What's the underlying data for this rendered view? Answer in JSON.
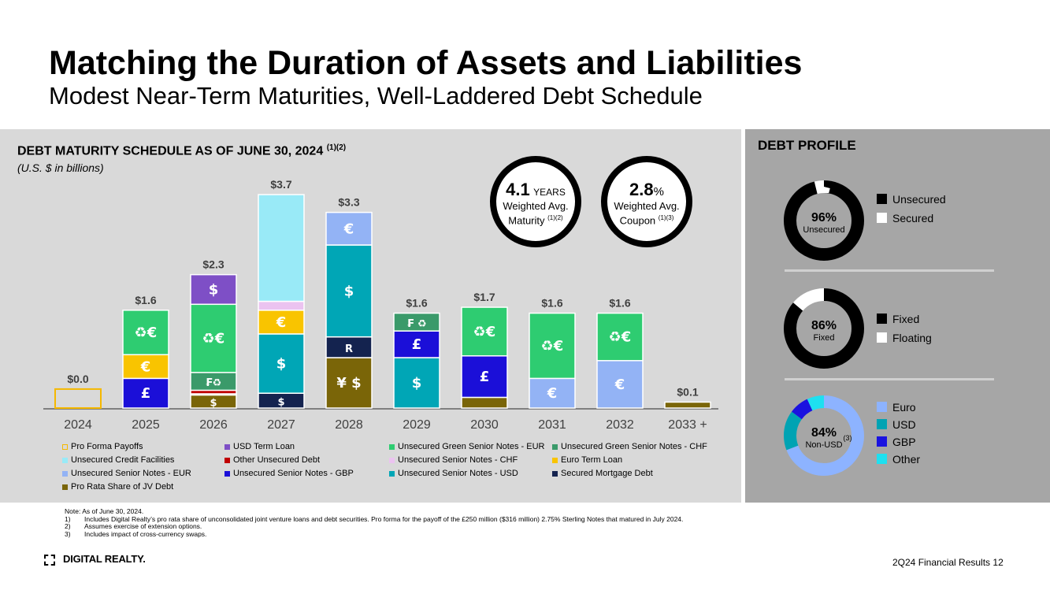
{
  "header": {
    "title": "Matching the Duration of Assets and Liabilities",
    "subtitle": "Modest Near-Term Maturities, Well-Laddered Debt Schedule"
  },
  "chart_panel": {
    "heading": "DEBT MATURITY SCHEDULE AS OF JUNE 30, 2024",
    "heading_note": "(1)(2)",
    "units": "(U.S. $ in billions)"
  },
  "kpis": {
    "maturity": {
      "value": "4.1",
      "unit": "YEARS",
      "label": "Weighted Avg. Maturity",
      "note": "(1)(2)"
    },
    "coupon": {
      "value": "2.8",
      "unit": "%",
      "label": "Weighted Avg. Coupon",
      "note": "(1)(3)"
    }
  },
  "colors": {
    "pro_forma": "#f5b800",
    "usd_term_loan": "#7e4fc6",
    "green_eur": "#2ecc71",
    "green_chf": "#3a9a6a",
    "credit_facilities": "#99eaf7",
    "other_unsecured": "#c00000",
    "senior_chf": "#ebc3f0",
    "euro_term_loan": "#f9c400",
    "senior_eur": "#93b3f5",
    "senior_gbp": "#1b0fd8",
    "senior_usd": "#00a6b6",
    "mortgage": "#14234f",
    "jv": "#7a6508"
  },
  "chart_data": {
    "type": "bar",
    "stacked": true,
    "categories": [
      "2024",
      "2025",
      "2026",
      "2027",
      "2028",
      "2029",
      "2030",
      "2031",
      "2032",
      "2033 +"
    ],
    "totals": [
      "$0.0",
      "$1.6",
      "$2.3",
      "$3.7",
      "$3.3",
      "$1.6",
      "$1.7",
      "$1.6",
      "$1.6",
      "$0.1"
    ],
    "series": [
      {
        "name": "Pro Forma Payoffs",
        "color_key": "pro_forma",
        "outline": true,
        "symbol": "",
        "values": [
          0.32,
          0,
          0,
          0,
          0,
          0,
          0,
          0,
          0,
          0
        ]
      },
      {
        "name": "USD Term Loan",
        "color_key": "usd_term_loan",
        "symbol": "$",
        "values": [
          0,
          0,
          0.5,
          0,
          0,
          0,
          0,
          0,
          0,
          0
        ]
      },
      {
        "name": "Unsecured Green Senior Notes - EUR",
        "color_key": "green_eur",
        "symbol": "♻€",
        "values": [
          0,
          0.75,
          1.15,
          0,
          0,
          0,
          0.82,
          1.1,
          0.8,
          0
        ]
      },
      {
        "name": "Unsecured Green Senior Notes - CHF",
        "color_key": "green_chf",
        "symbol": "₣♻",
        "values": [
          0,
          0,
          0.3,
          0,
          0,
          0.3,
          0,
          0,
          0,
          0
        ]
      },
      {
        "name": "Unsecured Credit Facilities",
        "color_key": "credit_facilities",
        "symbol": "",
        "values": [
          0,
          0,
          0,
          1.8,
          0,
          0,
          0,
          0,
          0,
          0
        ]
      },
      {
        "name": "Other Unsecured Debt",
        "color_key": "other_unsecured",
        "symbol": "",
        "values": [
          0,
          0,
          0.06,
          0,
          0,
          0,
          0,
          0,
          0,
          0
        ]
      },
      {
        "name": "Unsecured Senior Notes - CHF",
        "color_key": "senior_chf",
        "symbol": "₣",
        "values": [
          0,
          0,
          0,
          0.15,
          0,
          0,
          0,
          0,
          0,
          0
        ]
      },
      {
        "name": "Euro Term Loan",
        "color_key": "euro_term_loan",
        "symbol": "€",
        "values": [
          0,
          0.4,
          0,
          0.4,
          0,
          0,
          0,
          0,
          0,
          0
        ]
      },
      {
        "name": "Unsecured Senior Notes - EUR",
        "color_key": "senior_eur",
        "symbol": "€",
        "values": [
          0,
          0,
          0,
          0,
          0.55,
          0,
          0,
          0.5,
          0.8,
          0
        ]
      },
      {
        "name": "Unsecured Senior Notes - GBP",
        "color_key": "senior_gbp",
        "symbol": "£",
        "values": [
          0,
          0.5,
          0,
          0,
          0,
          0.45,
          0.7,
          0,
          0,
          0
        ]
      },
      {
        "name": "Unsecured Senior Notes - USD",
        "color_key": "senior_usd",
        "symbol": "$",
        "values": [
          0,
          0,
          0,
          1.0,
          1.55,
          0.85,
          0,
          0,
          0,
          0
        ]
      },
      {
        "name": "Secured Mortgage Debt",
        "color_key": "mortgage",
        "symbol": "R",
        "values": [
          0,
          0,
          0.02,
          0.25,
          0.35,
          0,
          0,
          0,
          0,
          0
        ]
      },
      {
        "name": "Pro Rata Share of JV Debt",
        "color_key": "jv",
        "symbol": "¥ $",
        "values": [
          0,
          0,
          0.22,
          0,
          0.85,
          0,
          0.18,
          0,
          0,
          0.1
        ]
      }
    ],
    "stack_order": [
      [
        "Pro Forma Payoffs"
      ],
      [
        "Unsecured Senior Notes - GBP",
        "Euro Term Loan",
        "Unsecured Green Senior Notes - EUR"
      ],
      [
        "Pro Rata Share of JV Debt",
        "Secured Mortgage Debt",
        "Other Unsecured Debt",
        "Unsecured Green Senior Notes - CHF",
        "Unsecured Green Senior Notes - EUR",
        "USD Term Loan"
      ],
      [
        "Secured Mortgage Debt",
        "Unsecured Senior Notes - USD",
        "Euro Term Loan",
        "Unsecured Senior Notes - CHF",
        "Unsecured Credit Facilities"
      ],
      [
        "Pro Rata Share of JV Debt",
        "Secured Mortgage Debt",
        "Unsecured Senior Notes - USD",
        "Unsecured Senior Notes - EUR"
      ],
      [
        "Unsecured Senior Notes - USD",
        "Unsecured Senior Notes - GBP",
        "Unsecured Green Senior Notes - CHF"
      ],
      [
        "Pro Rata Share of JV Debt",
        "Unsecured Senior Notes - GBP",
        "Unsecured Green Senior Notes - EUR"
      ],
      [
        "Unsecured Senior Notes - EUR",
        "Unsecured Green Senior Notes - EUR"
      ],
      [
        "Unsecured Senior Notes - EUR",
        "Unsecured Green Senior Notes - EUR"
      ],
      [
        "Pro Rata Share of JV Debt"
      ]
    ],
    "segment_symbols": [
      [
        ""
      ],
      [
        "£",
        "€",
        "♻€"
      ],
      [
        "$",
        "",
        "",
        "₣♻",
        "♻€",
        "$"
      ],
      [
        "$",
        "$",
        "€",
        "₣",
        ""
      ],
      [
        "¥ $",
        "R",
        "$",
        "€"
      ],
      [
        "$",
        "£",
        "₣ ♻"
      ],
      [
        "¥",
        "£",
        "♻€"
      ],
      [
        "€",
        "♻€"
      ],
      [
        "€",
        "♻€"
      ],
      [
        ""
      ]
    ],
    "ylim": [
      0,
      3.8
    ]
  },
  "legend": {
    "items": [
      {
        "label": "Pro Forma Payoffs",
        "color_key": "pro_forma",
        "outline": true
      },
      {
        "label": "USD Term Loan",
        "color_key": "usd_term_loan"
      },
      {
        "label": "Unsecured Green Senior Notes - EUR",
        "color_key": "green_eur"
      },
      {
        "label": "Unsecured Green Senior Notes - CHF",
        "color_key": "green_chf"
      },
      {
        "label": "Unsecured Credit Facilities",
        "color_key": "credit_facilities"
      },
      {
        "label": "Other Unsecured Debt",
        "color_key": "other_unsecured"
      },
      {
        "label": "Unsecured Senior Notes - CHF",
        "color_key": "senior_chf"
      },
      {
        "label": "Euro Term Loan",
        "color_key": "euro_term_loan"
      },
      {
        "label": "Unsecured Senior Notes - EUR",
        "color_key": "senior_eur"
      },
      {
        "label": "Unsecured Senior Notes - GBP",
        "color_key": "senior_gbp"
      },
      {
        "label": "Unsecured Senior Notes - USD",
        "color_key": "senior_usd"
      },
      {
        "label": "Secured Mortgage Debt",
        "color_key": "mortgage"
      },
      {
        "label": "Pro Rata Share of JV Debt",
        "color_key": "jv"
      }
    ]
  },
  "debt_profile": {
    "heading": "DEBT PROFILE",
    "donuts": [
      {
        "center_value": "96%",
        "center_label": "Unsecured",
        "center_note": "",
        "slices": [
          {
            "label": "Unsecured",
            "value": 96,
            "color": "#000000"
          },
          {
            "label": "Secured",
            "value": 4,
            "color": "#ffffff"
          }
        ]
      },
      {
        "center_value": "86%",
        "center_label": "Fixed",
        "center_note": "",
        "slices": [
          {
            "label": "Fixed",
            "value": 86,
            "color": "#000000"
          },
          {
            "label": "Floating",
            "value": 14,
            "color": "#ffffff"
          }
        ]
      },
      {
        "center_value": "84%",
        "center_label": "Non-USD",
        "center_note": "(3)",
        "slices": [
          {
            "label": "Euro",
            "value": 69,
            "color": "#8db3ff"
          },
          {
            "label": "USD",
            "value": 16,
            "color": "#00a3b3"
          },
          {
            "label": "GBP",
            "value": 8,
            "color": "#1a12e0"
          },
          {
            "label": "Other",
            "value": 7,
            "color": "#1ee0f0"
          }
        ]
      }
    ]
  },
  "notes": {
    "lines": [
      {
        "num": "Note:",
        "text": "As of June 30, 2024."
      },
      {
        "num": "1)",
        "text": "Includes Digital Realty’s pro rata share of unconsolidated joint venture loans and debt securities. Pro forma for the payoff of the £250 million ($316 million) 2.75% Sterling Notes that matured in July 2024."
      },
      {
        "num": "2)",
        "text": "Assumes exercise of extension options."
      },
      {
        "num": "3)",
        "text": "Includes impact of cross-currency swaps."
      }
    ]
  },
  "footer": {
    "logo_text": "DIGITAL REALTY.",
    "right": "2Q24 Financial Results  12"
  }
}
